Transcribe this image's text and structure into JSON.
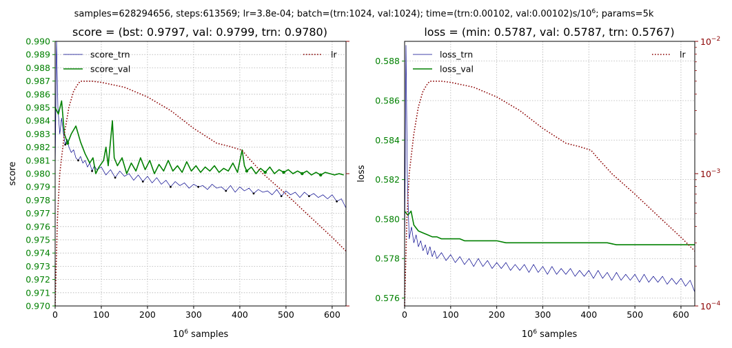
{
  "suptitle": "samples=628294656, steps:613569; lr=3.8e-04; batch=(trn:1024, val:1024); time=(trn:0.00102, val:0.00102)s/10",
  "suptitle_sup": "6",
  "suptitle_tail": "; params=5k",
  "colors": {
    "trn": "#00008b",
    "val": "#008000",
    "lr": "#8b0000",
    "left_ticks": "#008000",
    "right_ticks": "#8b0000"
  },
  "chart_data": [
    {
      "type": "line",
      "title": "score = (bst: 0.9797, val: 0.9799,  trn: 0.9780)",
      "xlabel": "10^6 samples",
      "xlabel_base": "10",
      "xlabel_sup": "6",
      "xlabel_tail": " samples",
      "ylabel": "score",
      "xlim": [
        0,
        630
      ],
      "ylim": [
        0.97,
        0.99
      ],
      "xticks": [
        0,
        100,
        200,
        300,
        400,
        500,
        600
      ],
      "xtick_labels": [
        "0",
        "100",
        "200",
        "300",
        "400",
        "500",
        "600"
      ],
      "yticks": [
        0.97,
        0.971,
        0.972,
        0.973,
        0.974,
        0.975,
        0.976,
        0.977,
        0.978,
        0.979,
        0.98,
        0.981,
        0.982,
        0.983,
        0.984,
        0.985,
        0.986,
        0.987,
        0.988,
        0.989,
        0.99
      ],
      "ytick_labels": [
        "0.970",
        "0.971",
        "0.972",
        "0.973",
        "0.974",
        "0.975",
        "0.976",
        "0.977",
        "0.978",
        "0.979",
        "0.980",
        "0.981",
        "0.982",
        "0.983",
        "0.984",
        "0.985",
        "0.986",
        "0.987",
        "0.988",
        "0.989",
        "0.990"
      ],
      "grid": true,
      "legend": [
        "top-left",
        "top-right"
      ],
      "series": [
        {
          "name": "score_trn",
          "x": [
            0,
            3,
            6,
            10,
            14,
            18,
            22,
            26,
            30,
            35,
            40,
            45,
            50,
            55,
            60,
            65,
            70,
            75,
            80,
            85,
            90,
            100,
            110,
            120,
            130,
            140,
            150,
            160,
            170,
            180,
            190,
            200,
            210,
            220,
            230,
            240,
            250,
            260,
            270,
            280,
            290,
            300,
            310,
            320,
            330,
            340,
            350,
            360,
            370,
            380,
            390,
            400,
            410,
            420,
            430,
            440,
            450,
            460,
            470,
            480,
            490,
            500,
            510,
            520,
            530,
            540,
            550,
            560,
            570,
            580,
            590,
            600,
            610,
            620,
            630
          ],
          "y": [
            0.98,
            0.99,
            0.985,
            0.983,
            0.9842,
            0.983,
            0.9822,
            0.9826,
            0.982,
            0.9816,
            0.9818,
            0.9812,
            0.981,
            0.9813,
            0.9808,
            0.981,
            0.9805,
            0.9808,
            0.9802,
            0.9806,
            0.9803,
            0.9805,
            0.9799,
            0.9803,
            0.9797,
            0.9802,
            0.9798,
            0.98,
            0.9795,
            0.9799,
            0.9794,
            0.9798,
            0.9793,
            0.9797,
            0.9792,
            0.9795,
            0.979,
            0.9794,
            0.9791,
            0.9793,
            0.9789,
            0.9792,
            0.979,
            0.9791,
            0.9788,
            0.9792,
            0.9789,
            0.979,
            0.9787,
            0.9791,
            0.9786,
            0.979,
            0.9787,
            0.9789,
            0.9785,
            0.9788,
            0.9786,
            0.9787,
            0.9784,
            0.9788,
            0.9783,
            0.9787,
            0.9784,
            0.9786,
            0.9782,
            0.9786,
            0.9783,
            0.9785,
            0.9782,
            0.9784,
            0.9781,
            0.9784,
            0.9779,
            0.9781,
            0.9774
          ]
        },
        {
          "name": "score_val",
          "x": [
            0,
            7,
            14,
            20,
            27,
            35,
            45,
            55,
            65,
            75,
            82,
            88,
            95,
            105,
            110,
            115,
            120,
            124,
            128,
            135,
            145,
            155,
            165,
            175,
            185,
            195,
            205,
            215,
            225,
            235,
            245,
            255,
            265,
            275,
            285,
            295,
            305,
            315,
            325,
            335,
            345,
            355,
            365,
            375,
            385,
            395,
            405,
            410,
            415,
            425,
            435,
            445,
            455,
            465,
            475,
            485,
            495,
            505,
            515,
            525,
            535,
            545,
            555,
            565,
            575,
            585,
            595,
            605,
            615,
            625
          ],
          "y": [
            0.985,
            0.9845,
            0.9855,
            0.983,
            0.9823,
            0.983,
            0.9836,
            0.9824,
            0.9815,
            0.9808,
            0.9812,
            0.98,
            0.9805,
            0.981,
            0.982,
            0.9806,
            0.9825,
            0.984,
            0.9812,
            0.9806,
            0.9812,
            0.98,
            0.9808,
            0.9802,
            0.9812,
            0.9803,
            0.981,
            0.98,
            0.9807,
            0.9802,
            0.981,
            0.9802,
            0.9806,
            0.9801,
            0.9809,
            0.9802,
            0.9806,
            0.9801,
            0.9805,
            0.9802,
            0.9806,
            0.9801,
            0.9804,
            0.9802,
            0.9808,
            0.9801,
            0.9818,
            0.9806,
            0.9802,
            0.9805,
            0.98,
            0.9804,
            0.9801,
            0.9805,
            0.98,
            0.9803,
            0.9801,
            0.9803,
            0.98,
            0.9802,
            0.98,
            0.9802,
            0.9799,
            0.9801,
            0.9799,
            0.9801,
            0.98,
            0.9799,
            0.98,
            0.9799
          ]
        },
        {
          "name": "lr",
          "axis": "right",
          "x": [
            0,
            5,
            10,
            20,
            30,
            40,
            50,
            55,
            60,
            80,
            100,
            150,
            200,
            250,
            300,
            350,
            380,
            405,
            420,
            450,
            500,
            550,
            600,
            630
          ],
          "y": [
            0.0001,
            0.00045,
            0.001,
            0.002,
            0.0032,
            0.0042,
            0.0048,
            0.005,
            0.005,
            0.005,
            0.0049,
            0.0045,
            0.0038,
            0.003,
            0.0022,
            0.0017,
            0.0016,
            0.0015,
            0.0013,
            0.001,
            0.0007,
            0.00048,
            0.00033,
            0.00026
          ]
        }
      ]
    },
    {
      "type": "line",
      "title": "loss = (min: 0.5787, val: 0.5787, trn: 0.5767)",
      "xlabel": "10^6 samples",
      "xlabel_base": "10",
      "xlabel_sup": "6",
      "xlabel_tail": " samples",
      "ylabel": "loss",
      "xlim": [
        0,
        630
      ],
      "ylim": [
        0.5756,
        0.589
      ],
      "xticks": [
        0,
        100,
        200,
        300,
        400,
        500,
        600
      ],
      "xtick_labels": [
        "0",
        "100",
        "200",
        "300",
        "400",
        "500",
        "600"
      ],
      "yticks": [
        0.576,
        0.578,
        0.58,
        0.582,
        0.584,
        0.586,
        0.588
      ],
      "ytick_labels": [
        "0.576",
        "0.578",
        "0.580",
        "0.582",
        "0.584",
        "0.586",
        "0.588"
      ],
      "y2_scale": "log",
      "y2lim": [
        0.0001,
        0.01
      ],
      "y2ticks": [
        0.0001,
        0.001,
        0.01
      ],
      "y2tick_base": "10",
      "y2tick_exps": [
        "−4",
        "−3",
        "−2"
      ],
      "grid": true,
      "legend": [
        "top-left",
        "top-right"
      ],
      "series": [
        {
          "name": "loss_trn",
          "x": [
            0,
            3,
            6,
            10,
            15,
            20,
            25,
            30,
            35,
            40,
            45,
            50,
            55,
            60,
            65,
            70,
            80,
            90,
            100,
            110,
            120,
            130,
            140,
            150,
            160,
            170,
            180,
            190,
            200,
            210,
            220,
            230,
            240,
            250,
            260,
            270,
            280,
            290,
            300,
            310,
            320,
            330,
            340,
            350,
            360,
            370,
            380,
            390,
            400,
            410,
            420,
            430,
            440,
            450,
            460,
            470,
            480,
            490,
            500,
            510,
            520,
            530,
            540,
            550,
            560,
            570,
            580,
            590,
            600,
            610,
            620,
            630
          ],
          "y": [
            0.578,
            0.5888,
            0.582,
            0.579,
            0.5796,
            0.5788,
            0.5792,
            0.5786,
            0.5789,
            0.5784,
            0.5787,
            0.5782,
            0.5786,
            0.5781,
            0.5784,
            0.578,
            0.5783,
            0.5779,
            0.5782,
            0.5778,
            0.5781,
            0.5777,
            0.578,
            0.5776,
            0.578,
            0.5776,
            0.5779,
            0.5775,
            0.5778,
            0.5775,
            0.5778,
            0.5774,
            0.5777,
            0.5774,
            0.5777,
            0.5773,
            0.5777,
            0.5773,
            0.5776,
            0.5772,
            0.5776,
            0.5772,
            0.5775,
            0.5772,
            0.5775,
            0.5771,
            0.5774,
            0.5771,
            0.5774,
            0.577,
            0.5774,
            0.577,
            0.5773,
            0.5769,
            0.5773,
            0.5769,
            0.5772,
            0.5769,
            0.5772,
            0.5768,
            0.5772,
            0.5768,
            0.5771,
            0.5768,
            0.5771,
            0.5767,
            0.577,
            0.5767,
            0.577,
            0.5766,
            0.5769,
            0.5763
          ]
        },
        {
          "name": "loss_val",
          "x": [
            0,
            7,
            14,
            20,
            30,
            40,
            50,
            60,
            70,
            80,
            90,
            100,
            110,
            120,
            130,
            140,
            150,
            160,
            170,
            180,
            190,
            200,
            220,
            240,
            260,
            280,
            300,
            320,
            340,
            360,
            380,
            400,
            420,
            440,
            460,
            480,
            500,
            520,
            540,
            560,
            580,
            600,
            630
          ],
          "y": [
            0.5804,
            0.5802,
            0.5804,
            0.5797,
            0.5794,
            0.5793,
            0.5792,
            0.5791,
            0.5791,
            0.579,
            0.579,
            0.579,
            0.579,
            0.579,
            0.5789,
            0.5789,
            0.5789,
            0.5789,
            0.5789,
            0.5789,
            0.5789,
            0.5789,
            0.5788,
            0.5788,
            0.5788,
            0.5788,
            0.5788,
            0.5788,
            0.5788,
            0.5788,
            0.5788,
            0.5788,
            0.5788,
            0.5788,
            0.5787,
            0.5787,
            0.5787,
            0.5787,
            0.5787,
            0.5787,
            0.5787,
            0.5787,
            0.5787
          ]
        },
        {
          "name": "lr",
          "axis": "right",
          "x": [
            0,
            5,
            10,
            20,
            30,
            40,
            50,
            55,
            60,
            80,
            100,
            150,
            200,
            250,
            300,
            350,
            380,
            405,
            420,
            450,
            500,
            550,
            600,
            630
          ],
          "y": [
            0.0001,
            0.00045,
            0.001,
            0.002,
            0.0032,
            0.0042,
            0.0048,
            0.005,
            0.005,
            0.005,
            0.0049,
            0.0045,
            0.0038,
            0.003,
            0.0022,
            0.0017,
            0.0016,
            0.0015,
            0.0013,
            0.001,
            0.0007,
            0.00048,
            0.00033,
            0.00026
          ]
        }
      ]
    }
  ]
}
